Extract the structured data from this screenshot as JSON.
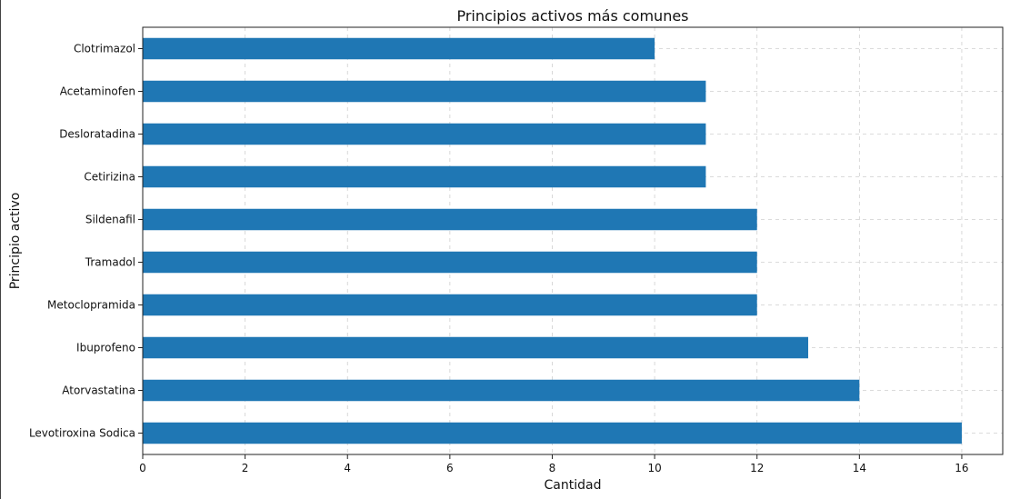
{
  "chart_data": {
    "type": "bar",
    "orientation": "horizontal",
    "title": "Principios activos más comunes",
    "xlabel": "Cantidad",
    "ylabel": "Principio activo",
    "categories": [
      "Levotiroxina Sodica",
      "Atorvastatina",
      "Ibuprofeno",
      "Metoclopramida",
      "Tramadol",
      "Sildenafil",
      "Cetirizina",
      "Desloratadina",
      "Acetaminofen",
      "Clotrimazol"
    ],
    "values": [
      16,
      14,
      13,
      12,
      12,
      12,
      11,
      11,
      11,
      10
    ],
    "xlim": [
      0,
      16.8
    ],
    "xticks": [
      0,
      2,
      4,
      6,
      8,
      10,
      12,
      14,
      16
    ],
    "grid": true,
    "bar_color": "#1f77b4"
  }
}
